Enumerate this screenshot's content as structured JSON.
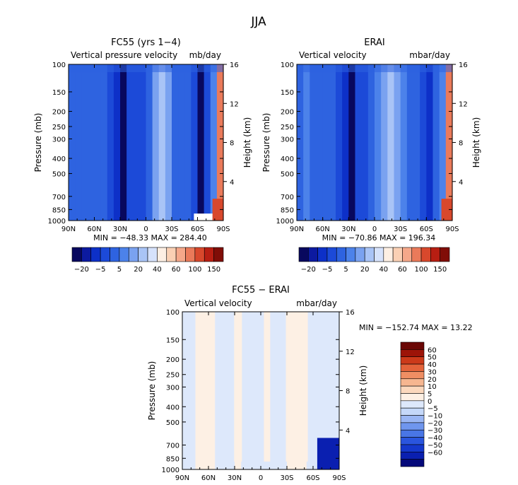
{
  "figure": {
    "title": "JJA"
  },
  "colors": {
    "main_scale": [
      "#08085e",
      "#0c1aa0",
      "#0d30c8",
      "#1c4ad8",
      "#2e63e0",
      "#4c82ea",
      "#7aa2f0",
      "#a9c4f6",
      "#d6e2fb",
      "#fdefe3",
      "#fad0b4",
      "#f5a88a",
      "#ea7a5a",
      "#d8482c",
      "#b81e12",
      "#800d07"
    ],
    "diff_scale": [
      "#05097a",
      "#0a1fb0",
      "#1538cc",
      "#2a55de",
      "#4976e6",
      "#6f96ee",
      "#9ab6f4",
      "#c5d8f9",
      "#dde8fb",
      "#fdf0e4",
      "#fbd8bd",
      "#f6b690",
      "#ef8e63",
      "#e4633a",
      "#cc3a1a",
      "#9d1408",
      "#6a0705"
    ]
  },
  "chart_data": [
    {
      "type": "heatmap",
      "title": "FC55 (yrs 1−4)",
      "subtitle_left": "Vertical pressure velocity",
      "subtitle_right": "mb/day",
      "ylabel": "Pressure (mb)",
      "ylabel_right": "Height (km)",
      "x_ticks": [
        "90N",
        "60N",
        "30N",
        "0",
        "30S",
        "60S",
        "90S"
      ],
      "y_ticks": [
        "100",
        "150",
        "200",
        "250",
        "300",
        "400",
        "500",
        "700",
        "850",
        "1000"
      ],
      "y_right_ticks": [
        "16",
        "12",
        "8",
        "4"
      ],
      "min_label": "MIN = −48.33",
      "max_label": "MAX = 284.40",
      "colorbar_labels": [
        "−20",
        "−5",
        "5",
        "20",
        "40",
        "60",
        "100",
        "150"
      ],
      "profile": [
        4,
        4,
        4,
        4,
        3.5,
        4,
        3,
        2,
        0,
        2.5,
        2.5,
        3,
        4,
        5.5,
        7,
        6,
        4,
        4,
        4,
        2.5,
        0,
        3,
        5,
        12
      ],
      "surface_detail": "red"
    },
    {
      "type": "heatmap",
      "title": "ERAI",
      "subtitle_left": "Vertical velocity",
      "subtitle_right": "mbar/day",
      "ylabel": "Pressure (mb)",
      "ylabel_right": "Height (km)",
      "x_ticks": [
        "90N",
        "60N",
        "30N",
        "0",
        "30S",
        "60S",
        "90S"
      ],
      "y_ticks": [
        "100",
        "150",
        "200",
        "250",
        "300",
        "400",
        "500",
        "700",
        "850",
        "1000"
      ],
      "y_right_ticks": [
        "16",
        "12",
        "8",
        "4"
      ],
      "min_label": "MIN = −70.86",
      "max_label": "MAX = 196.34",
      "colorbar_labels": [
        "−20",
        "−5",
        "5",
        "20",
        "40",
        "60",
        "100",
        "150"
      ],
      "profile": [
        4,
        4.5,
        4,
        4,
        4,
        3.5,
        3,
        2,
        0,
        2.5,
        3,
        3.5,
        4.5,
        5.5,
        6.5,
        6,
        4.5,
        4,
        4,
        3,
        2,
        3.5,
        4.5,
        12
      ],
      "surface_detail": "red"
    },
    {
      "type": "heatmap",
      "title": "FC55 − ERAI",
      "subtitle_left": "Vertical velocity",
      "subtitle_right": "mbar/day",
      "ylabel": "Pressure (mb)",
      "ylabel_right": "Height (km)",
      "x_ticks": [
        "90N",
        "60N",
        "30N",
        "0",
        "30S",
        "60S",
        "90S"
      ],
      "y_ticks": [
        "100",
        "150",
        "200",
        "250",
        "300",
        "400",
        "500",
        "700",
        "850",
        "1000"
      ],
      "y_right_ticks": [
        "16",
        "12",
        "8",
        "4"
      ],
      "min_label": "MIN = −152.74",
      "max_label": "MAX =   13.22",
      "colorbar_labels": [
        "60",
        "50",
        "40",
        "30",
        "20",
        "10",
        "5",
        "0",
        "−5",
        "−10",
        "−20",
        "−30",
        "−40",
        "−50",
        "−60"
      ],
      "profile": [
        8,
        8,
        9,
        9,
        9,
        8,
        8,
        8,
        9,
        8,
        8,
        8,
        8,
        8,
        8,
        8,
        9,
        9,
        9,
        8,
        8,
        8,
        8,
        8
      ],
      "surface_detail": "blue"
    }
  ]
}
